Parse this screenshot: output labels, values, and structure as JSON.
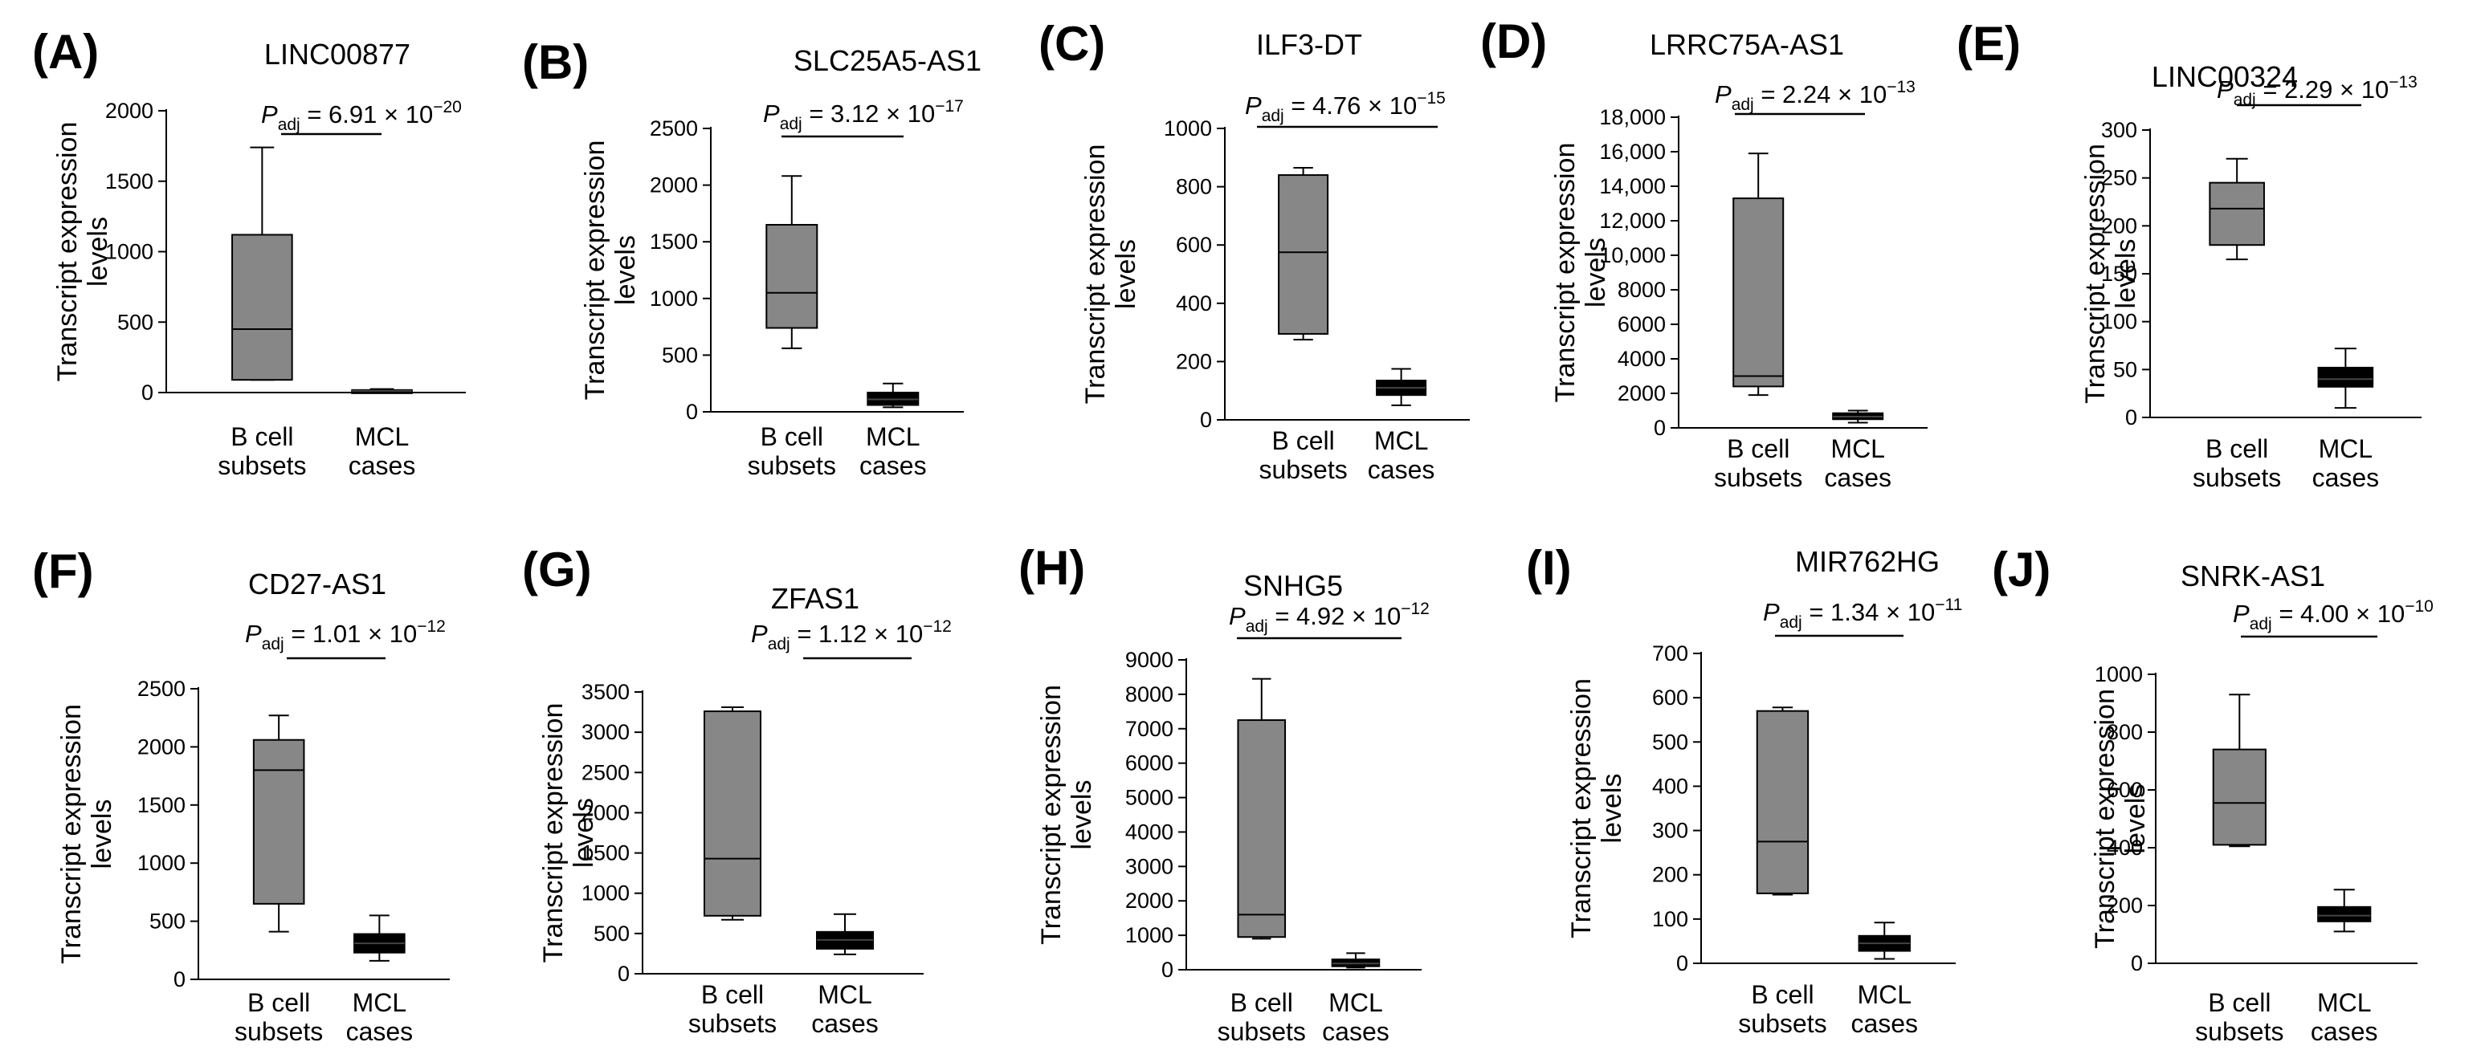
{
  "figure": {
    "ylabel_line1": "Transcript expression",
    "ylabel_line2": "levels",
    "padj_prefix": "P",
    "padj_subscript": "adj",
    "times_symbol": "×",
    "base": "10",
    "group_colors": {
      "b_cell_subsets": "#878787",
      "mcl_cases": "#000000"
    }
  },
  "chart_data": [
    {
      "type": "box",
      "panel": "(A)",
      "title": "LINC00877",
      "categories": [
        [
          "B cell",
          "subsets"
        ],
        [
          "MCL",
          "cases"
        ]
      ],
      "yticks": [
        0,
        500,
        1000,
        1500,
        2000
      ],
      "ytick_labels": [
        "0",
        "500",
        "1000",
        "1500",
        "2000"
      ],
      "ylim": [
        0,
        2000
      ],
      "boxes": [
        {
          "group": "B cell subsets",
          "min": 90,
          "q1": 90,
          "median": 450,
          "q3": 1120,
          "max": 1740
        },
        {
          "group": "MCL cases",
          "min": 5,
          "q1": 8,
          "median": 12,
          "q3": 18,
          "max": 25
        }
      ],
      "padj": {
        "mantissa": "6.91",
        "exponent": "−20"
      }
    },
    {
      "type": "box",
      "panel": "(B)",
      "title": "SLC25A5-AS1",
      "categories": [
        [
          "B cell",
          "subsets"
        ],
        [
          "MCL",
          "cases"
        ]
      ],
      "yticks": [
        0,
        500,
        1000,
        1500,
        2000,
        2500
      ],
      "ytick_labels": [
        "0",
        "500",
        "1000",
        "1500",
        "2000",
        "2500"
      ],
      "ylim": [
        0,
        2500
      ],
      "boxes": [
        {
          "group": "B cell subsets",
          "min": 560,
          "q1": 740,
          "median": 1050,
          "q3": 1650,
          "max": 2080
        },
        {
          "group": "MCL cases",
          "min": 40,
          "q1": 60,
          "median": 110,
          "q3": 170,
          "max": 250
        }
      ],
      "padj": {
        "mantissa": "3.12",
        "exponent": "−17"
      }
    },
    {
      "type": "box",
      "panel": "(C)",
      "title": "ILF3-DT",
      "categories": [
        [
          "B cell",
          "subsets"
        ],
        [
          "MCL",
          "cases"
        ]
      ],
      "yticks": [
        0,
        200,
        400,
        600,
        800,
        1000
      ],
      "ytick_labels": [
        "0",
        "200",
        "400",
        "600",
        "800",
        "1000"
      ],
      "ylim": [
        0,
        1000
      ],
      "boxes": [
        {
          "group": "B cell subsets",
          "min": 275,
          "q1": 295,
          "median": 575,
          "q3": 840,
          "max": 865
        },
        {
          "group": "MCL cases",
          "min": 50,
          "q1": 85,
          "median": 110,
          "q3": 135,
          "max": 175
        }
      ],
      "padj": {
        "mantissa": "4.76",
        "exponent": "−15"
      }
    },
    {
      "type": "box",
      "panel": "(D)",
      "title": "LRRC75A-AS1",
      "categories": [
        [
          "B cell",
          "subsets"
        ],
        [
          "MCL",
          "cases"
        ]
      ],
      "yticks": [
        0,
        2000,
        4000,
        6000,
        8000,
        10000,
        12000,
        14000,
        16000,
        18000
      ],
      "ytick_labels": [
        "0",
        "2000",
        "4000",
        "6000",
        "8000",
        "10,000",
        "12,000",
        "14,000",
        "16,000",
        "18,000"
      ],
      "ylim": [
        0,
        18000
      ],
      "boxes": [
        {
          "group": "B cell subsets",
          "min": 1900,
          "q1": 2400,
          "median": 3000,
          "q3": 13300,
          "max": 15900
        },
        {
          "group": "MCL cases",
          "min": 300,
          "q1": 500,
          "median": 650,
          "q3": 850,
          "max": 1000
        }
      ],
      "padj": {
        "mantissa": "2.24",
        "exponent": "−13"
      }
    },
    {
      "type": "box",
      "panel": "(E)",
      "title": "LINC00324",
      "categories": [
        [
          "B cell",
          "subsets"
        ],
        [
          "MCL",
          "cases"
        ]
      ],
      "yticks": [
        0,
        50,
        100,
        150,
        200,
        250,
        300
      ],
      "ytick_labels": [
        "0",
        "50",
        "100",
        "150",
        "200",
        "250",
        "300"
      ],
      "ylim": [
        0,
        300
      ],
      "boxes": [
        {
          "group": "B cell subsets",
          "min": 165,
          "q1": 180,
          "median": 218,
          "q3": 245,
          "max": 270
        },
        {
          "group": "MCL cases",
          "min": 10,
          "q1": 32,
          "median": 40,
          "q3": 52,
          "max": 72
        }
      ],
      "padj": {
        "mantissa": "2.29",
        "exponent": "−13"
      }
    },
    {
      "type": "box",
      "panel": "(F)",
      "title": "CD27-AS1",
      "categories": [
        [
          "B cell",
          "subsets"
        ],
        [
          "MCL",
          "cases"
        ]
      ],
      "yticks": [
        0,
        500,
        1000,
        1500,
        2000,
        2500
      ],
      "ytick_labels": [
        "0",
        "500",
        "1000",
        "1500",
        "2000",
        "2500"
      ],
      "ylim": [
        0,
        2500
      ],
      "boxes": [
        {
          "group": "B cell subsets",
          "min": 410,
          "q1": 650,
          "median": 1800,
          "q3": 2060,
          "max": 2270
        },
        {
          "group": "MCL cases",
          "min": 160,
          "q1": 230,
          "median": 310,
          "q3": 390,
          "max": 550
        }
      ],
      "padj": {
        "mantissa": "1.01",
        "exponent": "−12"
      }
    },
    {
      "type": "box",
      "panel": "(G)",
      "title": "ZFAS1",
      "categories": [
        [
          "B cell",
          "subsets"
        ],
        [
          "MCL",
          "cases"
        ]
      ],
      "yticks": [
        0,
        500,
        1000,
        1500,
        2000,
        2500,
        3000,
        3500
      ],
      "ytick_labels": [
        "0",
        "500",
        "1000",
        "1500",
        "2000",
        "2500",
        "3000",
        "3500"
      ],
      "ylim": [
        0,
        3500
      ],
      "boxes": [
        {
          "group": "B cell subsets",
          "min": 670,
          "q1": 720,
          "median": 1430,
          "q3": 3260,
          "max": 3310
        },
        {
          "group": "MCL cases",
          "min": 240,
          "q1": 310,
          "median": 420,
          "q3": 520,
          "max": 740
        }
      ],
      "padj": {
        "mantissa": "1.12",
        "exponent": "−12"
      }
    },
    {
      "type": "box",
      "panel": "(H)",
      "title": "SNHG5",
      "categories": [
        [
          "B cell",
          "subsets"
        ],
        [
          "MCL",
          "cases"
        ]
      ],
      "yticks": [
        0,
        1000,
        2000,
        3000,
        4000,
        5000,
        6000,
        7000,
        8000,
        9000
      ],
      "ytick_labels": [
        "0",
        "1000",
        "2000",
        "3000",
        "4000",
        "5000",
        "6000",
        "7000",
        "8000",
        "9000"
      ],
      "ylim": [
        0,
        9000
      ],
      "boxes": [
        {
          "group": "B cell subsets",
          "min": 900,
          "q1": 950,
          "median": 1600,
          "q3": 7250,
          "max": 8450
        },
        {
          "group": "MCL cases",
          "min": 60,
          "q1": 100,
          "median": 180,
          "q3": 300,
          "max": 480
        }
      ],
      "padj": {
        "mantissa": "4.92",
        "exponent": "−12"
      }
    },
    {
      "type": "box",
      "panel": "(I)",
      "title": "MIR762HG",
      "categories": [
        [
          "B cell",
          "subsets"
        ],
        [
          "MCL",
          "cases"
        ]
      ],
      "yticks": [
        0,
        100,
        200,
        300,
        400,
        500,
        600,
        700
      ],
      "ytick_labels": [
        "0",
        "100",
        "200",
        "300",
        "400",
        "500",
        "600",
        "700"
      ],
      "ylim": [
        0,
        700
      ],
      "boxes": [
        {
          "group": "B cell subsets",
          "min": 155,
          "q1": 158,
          "median": 275,
          "q3": 570,
          "max": 578
        },
        {
          "group": "MCL cases",
          "min": 10,
          "q1": 28,
          "median": 45,
          "q3": 62,
          "max": 92
        }
      ],
      "padj": {
        "mantissa": "1.34",
        "exponent": "−11"
      }
    },
    {
      "type": "box",
      "panel": "(J)",
      "title": "SNRK-AS1",
      "categories": [
        [
          "B cell",
          "subsets"
        ],
        [
          "MCL",
          "cases"
        ]
      ],
      "yticks": [
        0,
        200,
        400,
        600,
        800,
        1000
      ],
      "ytick_labels": [
        "0",
        "200",
        "400",
        "600",
        "800",
        "1000"
      ],
      "ylim": [
        0,
        1000
      ],
      "boxes": [
        {
          "group": "B cell subsets",
          "min": 405,
          "q1": 410,
          "median": 555,
          "q3": 740,
          "max": 930
        },
        {
          "group": "MCL cases",
          "min": 110,
          "q1": 145,
          "median": 165,
          "q3": 195,
          "max": 255
        }
      ],
      "padj": {
        "mantissa": "4.00",
        "exponent": "−10"
      }
    }
  ]
}
